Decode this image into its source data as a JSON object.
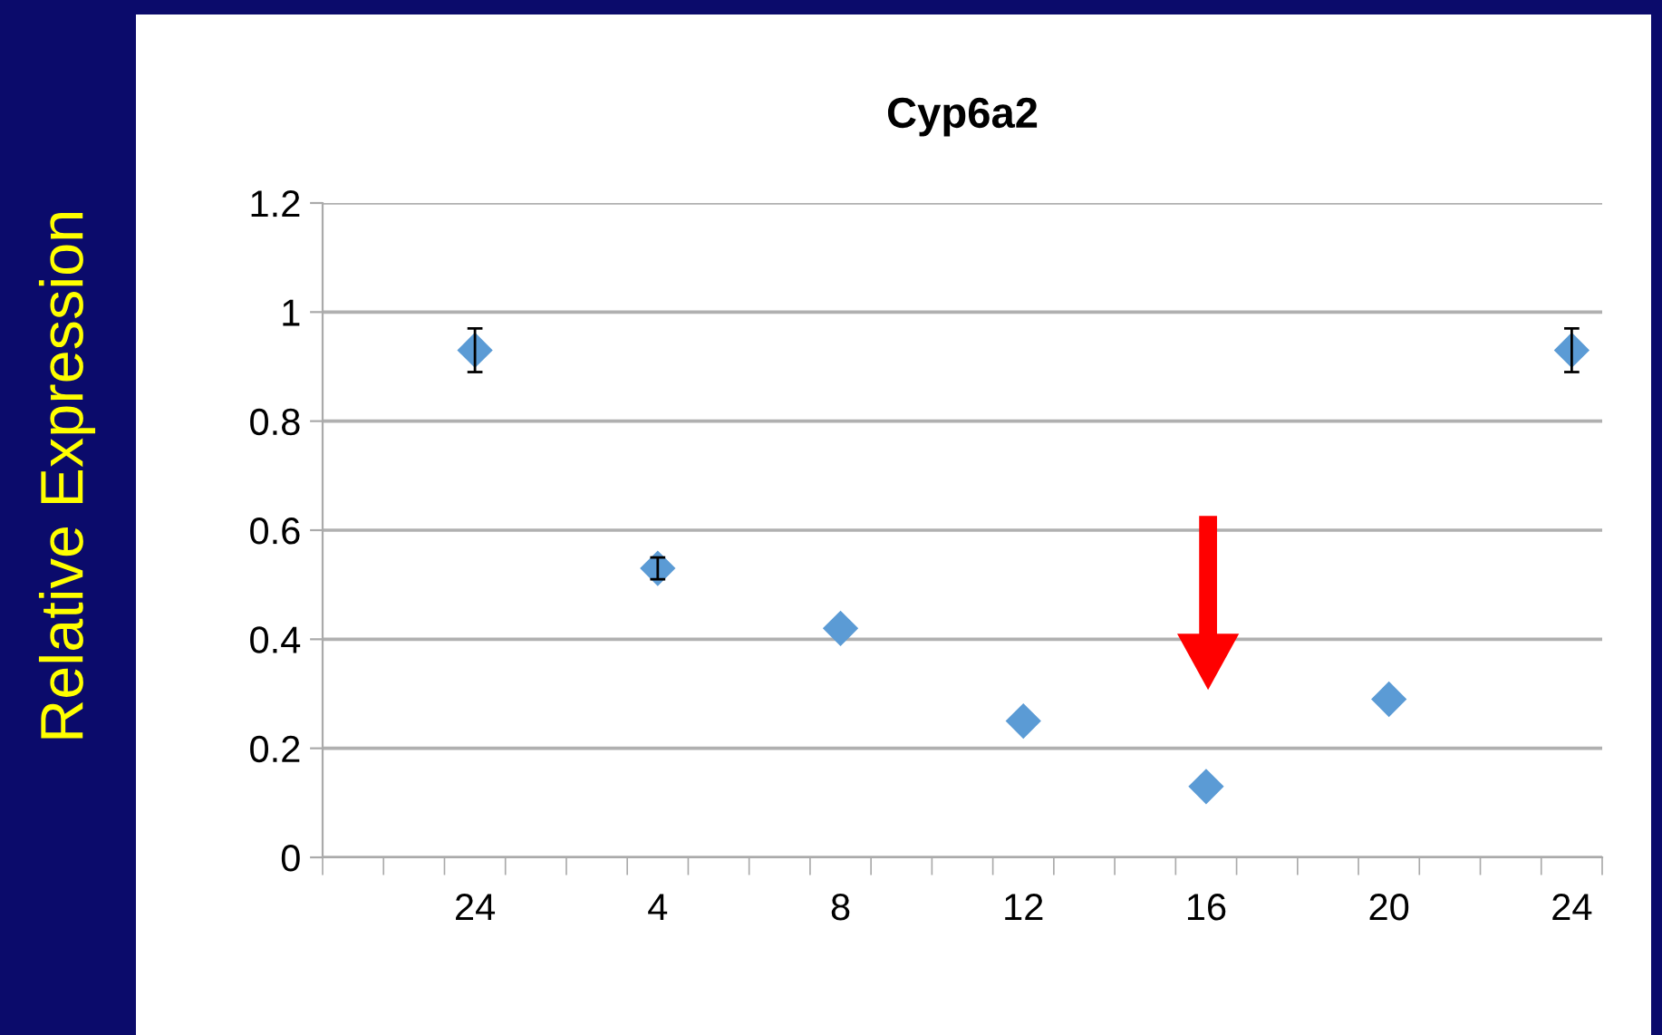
{
  "chart_data": {
    "type": "scatter",
    "title": "Cyp6a2",
    "ylabel": "Relative Expression",
    "categories": [
      null,
      null,
      "24",
      null,
      null,
      "4",
      null,
      null,
      "8",
      null,
      null,
      "12",
      null,
      null,
      "16",
      null,
      null,
      "20",
      null,
      null,
      "24"
    ],
    "values": [
      null,
      null,
      0.93,
      null,
      null,
      0.53,
      null,
      null,
      0.42,
      null,
      null,
      0.25,
      null,
      null,
      0.13,
      null,
      null,
      0.29,
      null,
      null,
      0.93
    ],
    "errors": [
      null,
      null,
      0.04,
      null,
      null,
      0.02,
      null,
      null,
      null,
      null,
      null,
      null,
      null,
      null,
      null,
      null,
      null,
      null,
      null,
      null,
      0.04
    ],
    "color": "#5b9bd5",
    "marker": "diamond",
    "grid": "y",
    "ylim": [
      0,
      1.2
    ],
    "yticks": [
      0,
      0.2,
      0.4,
      0.6,
      0.8,
      1,
      1.2
    ]
  }
}
